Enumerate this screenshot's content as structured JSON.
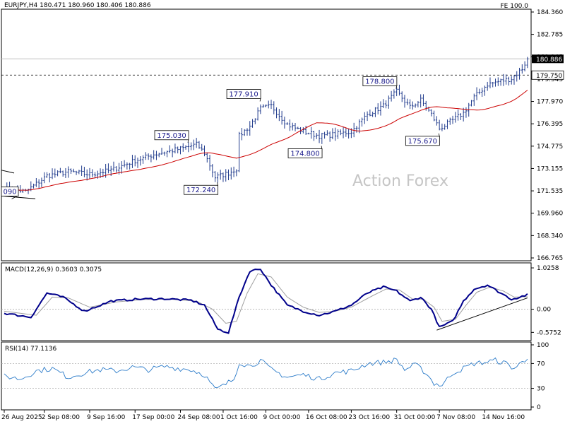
{
  "header": {
    "symbol_info": "EURJPY,H4  180.471 180.960 180.406 180.886",
    "corner_label": "FE 100.0"
  },
  "watermark": "Action Forex",
  "colors": {
    "bars": "#1f3a8c",
    "ma": "#cc0000",
    "macd": "#00008b",
    "signal": "#a0a0a0",
    "rsi": "#2b7bc9",
    "price_badge": "#000000"
  },
  "chart_data": [
    {
      "type": "ohlc",
      "ylim": [
        166.765,
        184.36
      ],
      "yticks": [
        "184.360",
        "182.785",
        "181.165",
        "179.545",
        "177.970",
        "176.395",
        "174.775",
        "173.155",
        "171.535",
        "169.960",
        "168.340",
        "166.765"
      ],
      "last_price": "180.886",
      "h_level": "179.750",
      "annotations": [
        {
          "label": "090",
          "x": 2,
          "y": 171.09
        },
        {
          "label": "175.030",
          "x": 68,
          "y": 175.03
        },
        {
          "label": "172.240",
          "x": 79,
          "y": 172.24
        },
        {
          "label": "177.910",
          "x": 95,
          "y": 177.91
        },
        {
          "label": "174.800",
          "x": 118,
          "y": 174.8
        },
        {
          "label": "178.800",
          "x": 146,
          "y": 178.8
        },
        {
          "label": "175.670",
          "x": 162,
          "y": 175.67
        }
      ],
      "close_anchors": [
        [
          0,
          171.8
        ],
        [
          8,
          171.6
        ],
        [
          16,
          172.7
        ],
        [
          24,
          173.0
        ],
        [
          32,
          172.8
        ],
        [
          40,
          173.1
        ],
        [
          48,
          173.7
        ],
        [
          56,
          174.2
        ],
        [
          66,
          174.6
        ],
        [
          72,
          174.9
        ],
        [
          75,
          174.3
        ],
        [
          79,
          172.6
        ],
        [
          84,
          172.9
        ],
        [
          87,
          173.2
        ],
        [
          88,
          175.5
        ],
        [
          92,
          176.2
        ],
        [
          96,
          177.4
        ],
        [
          100,
          177.6
        ],
        [
          106,
          176.3
        ],
        [
          112,
          175.8
        ],
        [
          118,
          175.5
        ],
        [
          124,
          175.6
        ],
        [
          130,
          175.8
        ],
        [
          136,
          177.0
        ],
        [
          142,
          177.6
        ],
        [
          147,
          178.6
        ],
        [
          152,
          177.5
        ],
        [
          156,
          178.0
        ],
        [
          160,
          177.0
        ],
        [
          163,
          176.0
        ],
        [
          168,
          176.6
        ],
        [
          172,
          177.1
        ],
        [
          176,
          178.2
        ],
        [
          181,
          179.1
        ],
        [
          185,
          179.3
        ],
        [
          190,
          179.5
        ],
        [
          194,
          180.2
        ],
        [
          196,
          180.886
        ]
      ]
    },
    {
      "type": "line",
      "name": "MACD(12,26,9) 0.3603 0.3075",
      "ylim": [
        -0.78,
        1.15
      ],
      "yticks": [
        "1.0258",
        "0.00",
        "-0.5752"
      ],
      "macd_anchors": [
        [
          0,
          -0.1
        ],
        [
          10,
          -0.2
        ],
        [
          16,
          0.4
        ],
        [
          22,
          0.3
        ],
        [
          30,
          -0.05
        ],
        [
          40,
          0.2
        ],
        [
          50,
          0.25
        ],
        [
          60,
          0.26
        ],
        [
          70,
          0.22
        ],
        [
          75,
          0.1
        ],
        [
          80,
          -0.5
        ],
        [
          84,
          -0.58
        ],
        [
          88,
          0.3
        ],
        [
          92,
          0.95
        ],
        [
          96,
          1.0
        ],
        [
          100,
          0.6
        ],
        [
          106,
          0.1
        ],
        [
          112,
          -0.05
        ],
        [
          118,
          -0.15
        ],
        [
          124,
          -0.05
        ],
        [
          130,
          0.1
        ],
        [
          136,
          0.4
        ],
        [
          142,
          0.55
        ],
        [
          147,
          0.45
        ],
        [
          152,
          0.2
        ],
        [
          156,
          0.3
        ],
        [
          160,
          0.0
        ],
        [
          163,
          -0.45
        ],
        [
          168,
          -0.3
        ],
        [
          172,
          0.2
        ],
        [
          176,
          0.5
        ],
        [
          181,
          0.6
        ],
        [
          186,
          0.4
        ],
        [
          190,
          0.25
        ],
        [
          193,
          0.3
        ],
        [
          196,
          0.36
        ]
      ],
      "signal_anchors": [
        [
          0,
          -0.05
        ],
        [
          12,
          -0.15
        ],
        [
          18,
          0.3
        ],
        [
          24,
          0.28
        ],
        [
          32,
          0.05
        ],
        [
          42,
          0.18
        ],
        [
          52,
          0.24
        ],
        [
          62,
          0.25
        ],
        [
          72,
          0.2
        ],
        [
          78,
          0.0
        ],
        [
          83,
          -0.35
        ],
        [
          87,
          -0.3
        ],
        [
          91,
          0.4
        ],
        [
          95,
          0.88
        ],
        [
          100,
          0.8
        ],
        [
          106,
          0.3
        ],
        [
          112,
          0.05
        ],
        [
          118,
          -0.08
        ],
        [
          124,
          -0.05
        ],
        [
          130,
          0.05
        ],
        [
          137,
          0.3
        ],
        [
          143,
          0.5
        ],
        [
          148,
          0.48
        ],
        [
          153,
          0.25
        ],
        [
          157,
          0.25
        ],
        [
          161,
          0.05
        ],
        [
          164,
          -0.3
        ],
        [
          169,
          -0.25
        ],
        [
          173,
          0.1
        ],
        [
          177,
          0.42
        ],
        [
          182,
          0.55
        ],
        [
          187,
          0.45
        ],
        [
          191,
          0.3
        ],
        [
          196,
          0.31
        ]
      ]
    },
    {
      "type": "line",
      "name": "RSI(14) 77.1136",
      "ylim": [
        0,
        100
      ],
      "yticks": [
        "100",
        "70",
        "30",
        "0"
      ],
      "rsi_anchors": [
        [
          0,
          50
        ],
        [
          6,
          45
        ],
        [
          12,
          58
        ],
        [
          18,
          62
        ],
        [
          24,
          48
        ],
        [
          30,
          55
        ],
        [
          36,
          60
        ],
        [
          42,
          58
        ],
        [
          48,
          64
        ],
        [
          54,
          60
        ],
        [
          60,
          65
        ],
        [
          66,
          62
        ],
        [
          70,
          60
        ],
        [
          75,
          52
        ],
        [
          79,
          28
        ],
        [
          82,
          34
        ],
        [
          86,
          45
        ],
        [
          88,
          72
        ],
        [
          92,
          66
        ],
        [
          96,
          75
        ],
        [
          100,
          60
        ],
        [
          106,
          48
        ],
        [
          112,
          52
        ],
        [
          118,
          45
        ],
        [
          124,
          55
        ],
        [
          130,
          58
        ],
        [
          136,
          70
        ],
        [
          142,
          72
        ],
        [
          147,
          76
        ],
        [
          150,
          60
        ],
        [
          154,
          68
        ],
        [
          158,
          55
        ],
        [
          161,
          38
        ],
        [
          164,
          35
        ],
        [
          168,
          55
        ],
        [
          172,
          62
        ],
        [
          176,
          70
        ],
        [
          180,
          72
        ],
        [
          184,
          75
        ],
        [
          188,
          70
        ],
        [
          191,
          62
        ],
        [
          194,
          72
        ],
        [
          196,
          77
        ]
      ]
    }
  ],
  "time_axis": {
    "labels": [
      {
        "label": "26 Aug 2025",
        "x": 0
      },
      {
        "label": "2 Sep 08:00",
        "x": 15
      },
      {
        "label": "9 Sep 16:00",
        "x": 32
      },
      {
        "label": "17 Sep 00:00",
        "x": 49
      },
      {
        "label": "24 Sep 08:00",
        "x": 66
      },
      {
        "label": "1 Oct 16:00",
        "x": 82
      },
      {
        "label": "9 Oct 00:00",
        "x": 98
      },
      {
        "label": "16 Oct 08:00",
        "x": 114
      },
      {
        "label": "23 Oct 16:00",
        "x": 130
      },
      {
        "label": "31 Oct 00:00",
        "x": 147
      },
      {
        "label": "7 Nov 08:00",
        "x": 163
      },
      {
        "label": "14 Nov 16:00",
        "x": 180
      }
    ]
  }
}
